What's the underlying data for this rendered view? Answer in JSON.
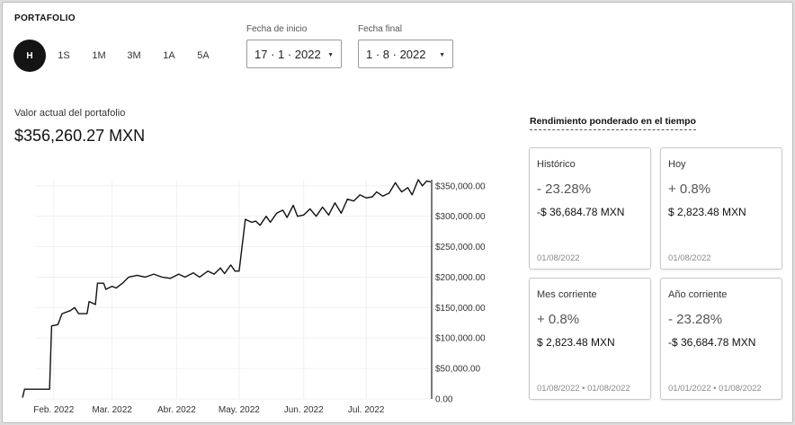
{
  "header": {
    "title": "PORTAFOLIO"
  },
  "range_buttons": [
    "H",
    "1S",
    "1M",
    "3M",
    "1A",
    "5A"
  ],
  "active_range": "H",
  "start_date": {
    "label": "Fecha de inicio",
    "value": "17 · 1 · 2022"
  },
  "end_date": {
    "label": "Fecha final",
    "value": "1 · 8 · 2022"
  },
  "portfolio": {
    "label": "Valor actual del portafolio",
    "value": "$356,260.27 MXN"
  },
  "performance": {
    "title": "Rendimiento ponderado en el tiempo",
    "cards": [
      {
        "title": "Histórico",
        "pct": "- 23.28%",
        "amount": "-$ 36,684.78 MXN",
        "date": "01/08/2022"
      },
      {
        "title": "Hoy",
        "pct": "+ 0.8%",
        "amount": "$ 2,823.48 MXN",
        "date": "01/08/2022"
      },
      {
        "title": "Mes corriente",
        "pct": "+ 0.8%",
        "amount": "$ 2,823.48 MXN",
        "date": "01/08/2022 • 01/08/2022"
      },
      {
        "title": "Año corriente",
        "pct": "- 23.28%",
        "amount": "-$ 36,684.78 MXN",
        "date": "01/01/2022 • 01/08/2022"
      }
    ]
  },
  "chart_data": {
    "type": "line",
    "title": "",
    "xlabel": "",
    "ylabel": "",
    "ylim": [
      0,
      360000
    ],
    "xlim": [
      "2022-01-17",
      "2022-08-01"
    ],
    "grid": true,
    "y_tick_values": [
      0,
      50000,
      100000,
      150000,
      200000,
      250000,
      300000,
      350000
    ],
    "y_ticks": [
      "0.00",
      "$50,000.00",
      "$100,000.00",
      "$150,000.00",
      "$200,000.00",
      "$250,000.00",
      "$300,000.00",
      "$350,000.00"
    ],
    "x_ticks": [
      {
        "date": "2022-02-01",
        "label": "Feb. 2022"
      },
      {
        "date": "2022-03-01",
        "label": "Mar. 2022"
      },
      {
        "date": "2022-04-01",
        "label": "Abr. 2022"
      },
      {
        "date": "2022-05-01",
        "label": "May. 2022"
      },
      {
        "date": "2022-06-01",
        "label": "Jun. 2022"
      },
      {
        "date": "2022-07-01",
        "label": "Jul. 2022"
      }
    ],
    "series": [
      {
        "color": "#111111",
        "points": [
          [
            "2022-01-17",
            2000
          ],
          [
            "2022-01-18",
            16000
          ],
          [
            "2022-01-30",
            16000
          ],
          [
            "2022-01-31",
            120000
          ],
          [
            "2022-02-03",
            122000
          ],
          [
            "2022-02-05",
            140000
          ],
          [
            "2022-02-09",
            145000
          ],
          [
            "2022-02-11",
            150000
          ],
          [
            "2022-02-13",
            140000
          ],
          [
            "2022-02-17",
            140000
          ],
          [
            "2022-02-18",
            160000
          ],
          [
            "2022-02-21",
            155000
          ],
          [
            "2022-02-22",
            190000
          ],
          [
            "2022-02-25",
            190000
          ],
          [
            "2022-02-26",
            180000
          ],
          [
            "2022-03-01",
            185000
          ],
          [
            "2022-03-03",
            182000
          ],
          [
            "2022-03-06",
            190000
          ],
          [
            "2022-03-09",
            200000
          ],
          [
            "2022-03-13",
            203000
          ],
          [
            "2022-03-17",
            200000
          ],
          [
            "2022-03-21",
            205000
          ],
          [
            "2022-03-25",
            200000
          ],
          [
            "2022-03-29",
            198000
          ],
          [
            "2022-04-02",
            205000
          ],
          [
            "2022-04-05",
            200000
          ],
          [
            "2022-04-09",
            207000
          ],
          [
            "2022-04-12",
            200000
          ],
          [
            "2022-04-16",
            210000
          ],
          [
            "2022-04-19",
            205000
          ],
          [
            "2022-04-22",
            215000
          ],
          [
            "2022-04-24",
            206000
          ],
          [
            "2022-04-27",
            220000
          ],
          [
            "2022-04-29",
            210000
          ],
          [
            "2022-05-01",
            210000
          ],
          [
            "2022-05-04",
            295000
          ],
          [
            "2022-05-07",
            290000
          ],
          [
            "2022-05-09",
            292000
          ],
          [
            "2022-05-11",
            285000
          ],
          [
            "2022-05-14",
            300000
          ],
          [
            "2022-05-16",
            290000
          ],
          [
            "2022-05-19",
            305000
          ],
          [
            "2022-05-22",
            310000
          ],
          [
            "2022-05-24",
            298000
          ],
          [
            "2022-05-27",
            318000
          ],
          [
            "2022-05-29",
            300000
          ],
          [
            "2022-06-01",
            302000
          ],
          [
            "2022-06-04",
            312000
          ],
          [
            "2022-06-07",
            300000
          ],
          [
            "2022-06-10",
            315000
          ],
          [
            "2022-06-13",
            302000
          ],
          [
            "2022-06-16",
            322000
          ],
          [
            "2022-06-19",
            305000
          ],
          [
            "2022-06-22",
            328000
          ],
          [
            "2022-06-25",
            325000
          ],
          [
            "2022-06-28",
            335000
          ],
          [
            "2022-07-01",
            330000
          ],
          [
            "2022-07-04",
            332000
          ],
          [
            "2022-07-06",
            340000
          ],
          [
            "2022-07-09",
            333000
          ],
          [
            "2022-07-12",
            338000
          ],
          [
            "2022-07-15",
            355000
          ],
          [
            "2022-07-18",
            340000
          ],
          [
            "2022-07-21",
            347000
          ],
          [
            "2022-07-23",
            335000
          ],
          [
            "2022-07-26",
            360000
          ],
          [
            "2022-07-28",
            350000
          ],
          [
            "2022-07-30",
            358000
          ],
          [
            "2022-08-01",
            356260
          ]
        ]
      }
    ]
  }
}
